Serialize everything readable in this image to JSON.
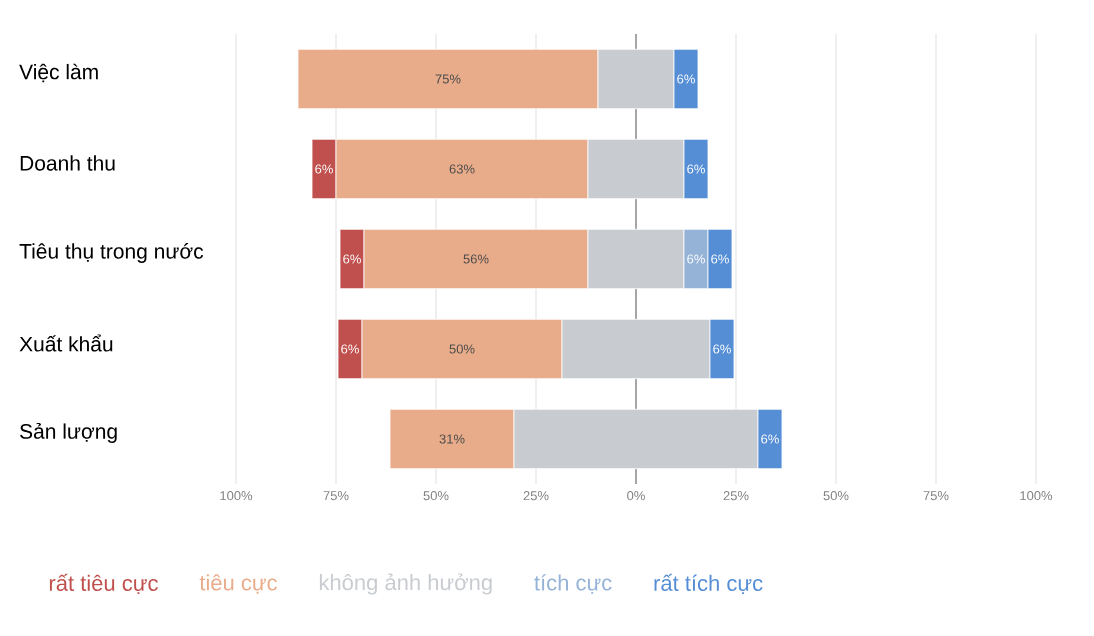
{
  "chart_data": {
    "type": "bar",
    "orientation": "horizontal",
    "categories": [
      "Việc làm",
      "Doanh thu",
      "Tiêu thụ trong nước",
      "Xuất khẩu",
      "Sản lượng"
    ],
    "series": [
      {
        "name": "rất tiêu cực",
        "color": "#c0504d",
        "base": [
          null,
          -81,
          -74,
          -74.5,
          null
        ],
        "values": [
          null,
          6,
          6,
          6,
          null
        ],
        "value_labels": [
          null,
          "6%",
          "6%",
          "6%",
          null
        ]
      },
      {
        "name": "tiêu cực",
        "color": "#e9ac8a",
        "base": [
          -84.5,
          -75,
          -68,
          -68.5,
          -61.5
        ],
        "values": [
          75,
          63,
          56,
          50,
          31
        ],
        "value_labels": [
          "75%",
          "63%",
          "56%",
          "50%",
          "31%"
        ]
      },
      {
        "name": "không ảnh hưởng",
        "color": "#c8ccd0",
        "base": [
          -9.5,
          -12,
          -12,
          -18.5,
          -30.5
        ],
        "values": [
          19,
          24,
          24,
          37,
          61
        ]
      },
      {
        "name": "tích cực",
        "color": "#95b3d7",
        "base": [
          null,
          null,
          12,
          null,
          null
        ],
        "values": [
          null,
          null,
          6,
          null,
          null
        ],
        "value_labels": [
          null,
          null,
          "6%",
          null,
          null
        ]
      },
      {
        "name": "rất tích cực",
        "color": "#558ed5",
        "base": [
          9.5,
          12,
          18,
          18.5,
          30.5
        ],
        "values": [
          6,
          6,
          6,
          6,
          6
        ],
        "value_labels": [
          "6%",
          "6%",
          "6%",
          "6%",
          "6%"
        ]
      }
    ],
    "xlim": [
      -100,
      100
    ],
    "xticks": [
      {
        "value": -100,
        "label": "100%"
      },
      {
        "value": -75,
        "label": "75%"
      },
      {
        "value": -50,
        "label": "50%"
      },
      {
        "value": -25,
        "label": "25%"
      },
      {
        "value": 0,
        "label": "0%"
      },
      {
        "value": 25,
        "label": "25%"
      },
      {
        "value": 50,
        "label": "50%"
      },
      {
        "value": 75,
        "label": "75%"
      },
      {
        "value": 100,
        "label": "100%"
      }
    ],
    "grid": "x",
    "ref_lines": [
      {
        "axis": "x",
        "value": 0,
        "color": "#a6a6a6"
      }
    ],
    "legend": "bottom"
  }
}
